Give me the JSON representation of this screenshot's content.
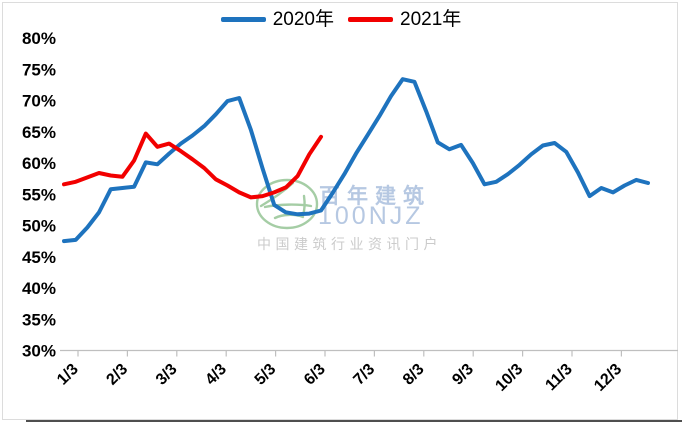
{
  "watermark": {
    "brand_cn": "百年建筑",
    "brand_en": "100NJZ",
    "tagline": "中国建筑行业资讯门户",
    "logo_color": "#a5cda5",
    "text_color": "#b6c8e2",
    "tagline_color": "#cbcbcb"
  },
  "chart_data": {
    "type": "line",
    "title": "",
    "legend_position": "top",
    "grid": false,
    "ylim": [
      30,
      80
    ],
    "y_tick_step": 5,
    "y_tick_labels": [
      "80%",
      "75%",
      "70%",
      "65%",
      "60%",
      "55%",
      "50%",
      "45%",
      "40%",
      "35%",
      "30%"
    ],
    "x_tick_labels": [
      "1/3",
      "2/3",
      "3/3",
      "4/3",
      "5/3",
      "6/3",
      "7/3",
      "8/3",
      "9/3",
      "10/3",
      "11/3",
      "12/3"
    ],
    "x_unit": "weekly",
    "axis_color": "#bfbfbf",
    "series": [
      {
        "name": "2020年",
        "color": "#1e73be",
        "values": [
          47.5,
          47.7,
          49.7,
          52.1,
          55.8,
          56.0,
          56.2,
          60.1,
          59.8,
          61.5,
          63.1,
          64.4,
          65.9,
          67.8,
          69.9,
          70.4,
          65.3,
          59.1,
          53.3,
          52.1,
          51.8,
          51.9,
          52.4,
          55.2,
          58.2,
          61.5,
          64.5,
          67.5,
          70.7,
          73.4,
          73.0,
          68.3,
          63.3,
          62.2,
          62.9,
          60.0,
          56.6,
          57.0,
          58.2,
          59.7,
          61.4,
          62.8,
          63.2,
          61.8,
          58.5,
          54.7,
          56.0,
          55.3,
          56.4,
          57.3,
          56.8
        ]
      },
      {
        "name": "2021年",
        "color": "#f20000",
        "values": [
          56.6,
          57.0,
          57.7,
          58.4,
          58.0,
          57.8,
          60.4,
          64.7,
          62.6,
          63.1,
          61.9,
          60.6,
          59.2,
          57.4,
          56.4,
          55.3,
          54.5,
          54.7,
          55.3,
          56.1,
          57.9,
          61.4,
          64.2
        ]
      }
    ]
  }
}
